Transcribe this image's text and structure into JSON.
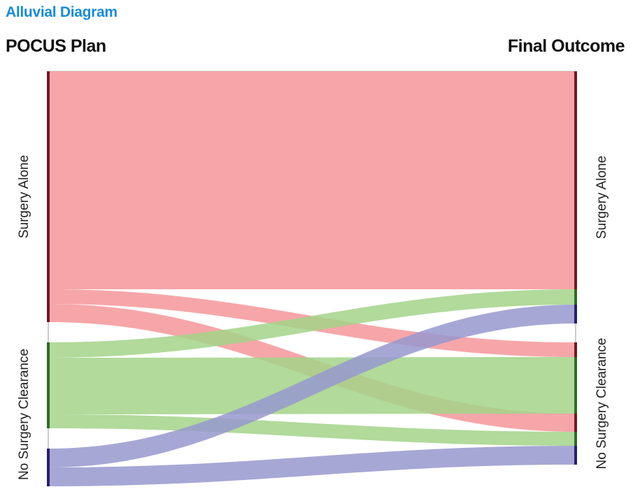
{
  "title": "Alluvial Diagram",
  "axes": {
    "left": "POCUS Plan",
    "right": "Final Outcome"
  },
  "chart_data": {
    "type": "alluvial",
    "stages": [
      "POCUS Plan",
      "Final Outcome"
    ],
    "nodes": {
      "left": [
        {
          "id": "L-sa",
          "label": "Surgery Alone",
          "color": "#f4969a",
          "bar_color": "#6e1a1f"
        },
        {
          "id": "L-nsc",
          "label": "No Surgery Clearance",
          "color": "#a3d48a",
          "bar_color": "#2f6b2a"
        },
        {
          "id": "L-blue",
          "label": "",
          "color": "#9898cf",
          "bar_color": "#22226b"
        }
      ],
      "right": [
        {
          "id": "R-sa",
          "label": "Surgery Alone"
        },
        {
          "id": "R-nsc",
          "label": "No Surgery Clearance"
        }
      ]
    },
    "flows": [
      {
        "from": "L-sa",
        "to": "R-sa",
        "value": 312,
        "color": "#f4969a"
      },
      {
        "from": "L-sa",
        "to": "R-nsc",
        "value": 21,
        "color": "#f4969a"
      },
      {
        "from": "L-sa",
        "to": "R-nsc",
        "value": 26,
        "color": "#f4969a"
      },
      {
        "from": "L-nsc",
        "to": "R-sa",
        "value": 22,
        "color": "#a3d48a"
      },
      {
        "from": "L-nsc",
        "to": "R-nsc",
        "value": 81,
        "color": "#a3d48a"
      },
      {
        "from": "L-nsc",
        "to": "R-nsc",
        "value": 20,
        "color": "#a3d48a"
      },
      {
        "from": "L-blue",
        "to": "R-sa",
        "value": 27,
        "color": "#9898cf"
      },
      {
        "from": "L-blue",
        "to": "R-nsc",
        "value": 27,
        "color": "#9898cf"
      }
    ]
  }
}
